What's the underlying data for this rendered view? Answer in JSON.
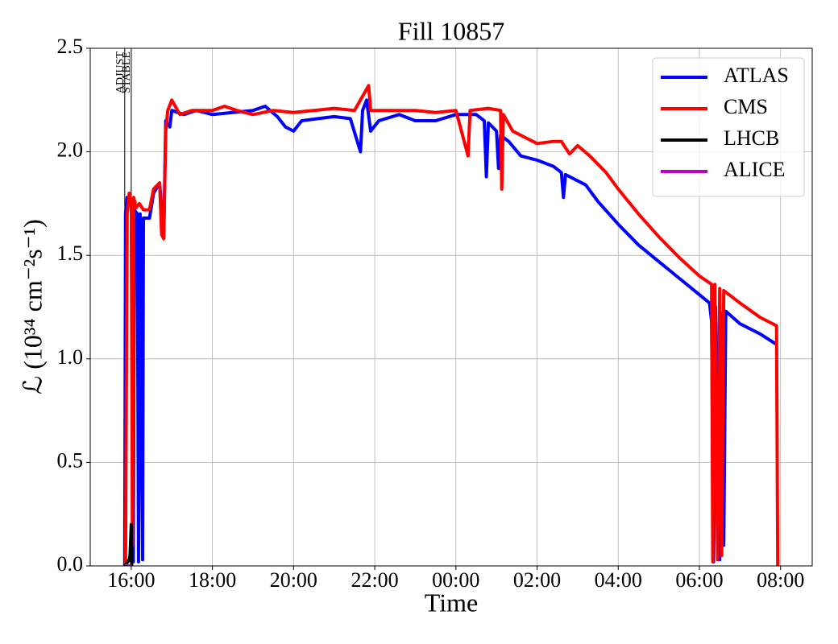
{
  "chart_data": {
    "type": "line",
    "title": "Fill 10857",
    "xlabel": "Time",
    "ylabel": "ℒ (10³⁴ cm⁻²s⁻¹)",
    "xlim": [
      14.99,
      32.78
    ],
    "ylim": [
      0,
      2.5
    ],
    "xticks": [
      {
        "value": 16,
        "label": "16:00"
      },
      {
        "value": 18,
        "label": "18:00"
      },
      {
        "value": 20,
        "label": "20:00"
      },
      {
        "value": 22,
        "label": "22:00"
      },
      {
        "value": 24,
        "label": "00:00"
      },
      {
        "value": 26,
        "label": "02:00"
      },
      {
        "value": 28,
        "label": "04:00"
      },
      {
        "value": 30,
        "label": "06:00"
      },
      {
        "value": 32,
        "label": "08:00"
      }
    ],
    "yticks": [
      {
        "value": 0,
        "label": "0.0"
      },
      0.5,
      {
        "value": 1,
        "label": "1.0"
      },
      1.5,
      {
        "value": 2,
        "label": "2.0"
      },
      2.5
    ],
    "grid": true,
    "legend": "upper right",
    "annotations": [
      {
        "label": "ADJUST",
        "x": 15.84
      },
      {
        "label": "STABLE",
        "x": 16.0
      }
    ],
    "series": [
      {
        "name": "ATLAS",
        "color": "#0000ff",
        "x": [
          15.84,
          15.86,
          15.9,
          15.95,
          16.0,
          16.05,
          16.08,
          16.15,
          16.18,
          16.22,
          16.28,
          16.3,
          16.45,
          16.55,
          16.7,
          16.8,
          16.85,
          16.95,
          17.0,
          17.3,
          17.6,
          18,
          18.5,
          19,
          19.3,
          19.6,
          19.8,
          20.0,
          20.2,
          20.6,
          21,
          21.4,
          21.65,
          21.7,
          21.8,
          21.9,
          22.1,
          22.6,
          23,
          23.5,
          24,
          24.5,
          24.7,
          24.75,
          24.8,
          25.0,
          25.05,
          25.1,
          25.3,
          25.6,
          26,
          26.4,
          26.6,
          26.65,
          26.7,
          26.9,
          27.2,
          27.5,
          28,
          28.5,
          29,
          29.5,
          30,
          30.25,
          30.3,
          30.35,
          30.4,
          30.5,
          30.55,
          30.6,
          30.65,
          31,
          31.5,
          31.9
        ],
        "values": [
          0,
          1.7,
          1.78,
          1.75,
          1.75,
          0.02,
          1.72,
          1.7,
          0.02,
          1.7,
          0.03,
          1.68,
          1.68,
          1.8,
          1.85,
          1.6,
          2.15,
          2.12,
          2.2,
          2.18,
          2.2,
          2.18,
          2.19,
          2.2,
          2.22,
          2.17,
          2.12,
          2.1,
          2.15,
          2.16,
          2.17,
          2.16,
          2.0,
          2.2,
          2.25,
          2.1,
          2.15,
          2.18,
          2.15,
          2.15,
          2.18,
          2.18,
          2.15,
          1.88,
          2.14,
          2.1,
          1.92,
          2.08,
          2.05,
          1.98,
          1.96,
          1.93,
          1.9,
          1.78,
          1.89,
          1.87,
          1.84,
          1.76,
          1.65,
          1.55,
          1.47,
          1.39,
          1.31,
          1.27,
          1.18,
          0.02,
          1.25,
          0.03,
          1.22,
          0.1,
          1.23,
          1.17,
          1.12,
          1.07
        ]
      },
      {
        "name": "CMS",
        "color": "#ff0000",
        "x": [
          15.86,
          15.9,
          15.95,
          16.0,
          16.03,
          16.06,
          16.12,
          16.2,
          16.3,
          16.45,
          16.55,
          16.7,
          16.75,
          16.8,
          16.85,
          16.9,
          17.0,
          17.2,
          17.5,
          18,
          18.3,
          18.6,
          19,
          19.5,
          20,
          20.5,
          21,
          21.5,
          21.85,
          21.9,
          22.5,
          23,
          23.5,
          24,
          24.3,
          24.35,
          24.8,
          25.1,
          25.13,
          25.17,
          25.4,
          25.7,
          26,
          26.4,
          26.6,
          26.8,
          27.0,
          27.3,
          27.7,
          28,
          28.5,
          29,
          29.5,
          30,
          30.3,
          30.33,
          30.38,
          30.45,
          30.5,
          30.55,
          30.6,
          31,
          31.5,
          31.9,
          31.93
        ],
        "values": [
          0,
          1.7,
          1.8,
          1.75,
          0.1,
          1.78,
          1.73,
          1.75,
          1.72,
          1.72,
          1.82,
          1.85,
          1.6,
          1.58,
          2.1,
          2.2,
          2.25,
          2.18,
          2.2,
          2.2,
          2.22,
          2.2,
          2.18,
          2.2,
          2.19,
          2.2,
          2.21,
          2.2,
          2.32,
          2.2,
          2.2,
          2.2,
          2.19,
          2.2,
          1.98,
          2.2,
          2.21,
          2.2,
          1.82,
          2.18,
          2.1,
          2.07,
          2.04,
          2.05,
          2.05,
          1.99,
          2.03,
          1.98,
          1.9,
          1.82,
          1.7,
          1.59,
          1.49,
          1.4,
          1.36,
          0.02,
          1.36,
          0.03,
          1.34,
          0.05,
          1.33,
          1.27,
          1.2,
          1.16,
          0
        ]
      },
      {
        "name": "LHCB",
        "color": "#000000",
        "x": [
          15.84,
          15.95,
          15.97,
          16.0,
          16.01
        ],
        "values": [
          0,
          0.03,
          0.05,
          0.2,
          0
        ]
      },
      {
        "name": "ALICE",
        "color": "#bf00bf",
        "x": [
          15.84,
          16.0
        ],
        "values": [
          0,
          0
        ]
      }
    ]
  }
}
